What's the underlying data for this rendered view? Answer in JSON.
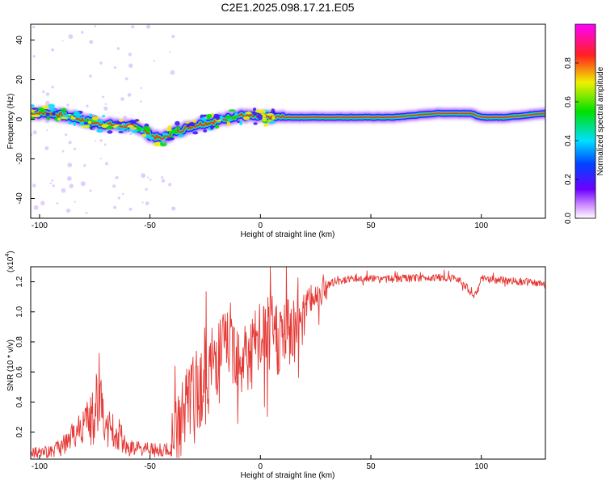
{
  "title": "C2E1.2025.098.17.21.E05",
  "colors": {
    "snr_line": "#e53935",
    "axis": "#000000",
    "background": "#ffffff"
  },
  "chart_data": [
    {
      "type": "heatmap",
      "xlabel": "Height of straight line (km)",
      "ylabel": "Frequency (Hz)",
      "xlim": [
        -104,
        129
      ],
      "ylim": [
        -50,
        48
      ],
      "xticks": [
        -100,
        -50,
        0,
        50,
        100
      ],
      "yticks": [
        40,
        20,
        0,
        -20,
        -40
      ],
      "xtick_labels": [
        "-100",
        "-50",
        "0",
        "50",
        "100"
      ],
      "ytick_labels": [
        "40",
        "20",
        "0",
        "-20",
        "-40"
      ],
      "grid": false,
      "colorbar": {
        "label": "Normalized spectral amplitude",
        "range": [
          0,
          1
        ],
        "ticks": [
          0.0,
          0.2,
          0.4,
          0.6,
          0.8
        ],
        "tick_labels": [
          "0.0",
          "0.2",
          "0.4",
          "0.6",
          "0.8"
        ],
        "colormap": "rainbow (white-violet-blue-cyan-green-yellow-red-magenta)"
      },
      "ridge_frequency_hz": [
        {
          "x": -104,
          "y": 3
        },
        {
          "x": -95,
          "y": 3
        },
        {
          "x": -85,
          "y": 1
        },
        {
          "x": -75,
          "y": -2
        },
        {
          "x": -65,
          "y": -3
        },
        {
          "x": -55,
          "y": -4
        },
        {
          "x": -50,
          "y": -8
        },
        {
          "x": -45,
          "y": -10
        },
        {
          "x": -40,
          "y": -7
        },
        {
          "x": -35,
          "y": -5
        },
        {
          "x": -30,
          "y": -3
        },
        {
          "x": -20,
          "y": -1
        },
        {
          "x": -10,
          "y": 2
        },
        {
          "x": 0,
          "y": 1
        },
        {
          "x": 10,
          "y": 1
        },
        {
          "x": 30,
          "y": 1
        },
        {
          "x": 60,
          "y": 1
        },
        {
          "x": 80,
          "y": 3
        },
        {
          "x": 95,
          "y": 3
        },
        {
          "x": 100,
          "y": 1
        },
        {
          "x": 110,
          "y": 1
        },
        {
          "x": 120,
          "y": 2
        },
        {
          "x": 129,
          "y": 3
        }
      ]
    },
    {
      "type": "line",
      "xlabel": "Height of straight line (km)",
      "ylabel": "SNR (10 * v/v)",
      "y_scale_label": "(x10",
      "y_scale_exp": "4",
      "y_scale_close": ")",
      "xlim": [
        -104,
        129
      ],
      "ylim": [
        0.02,
        1.3
      ],
      "xticks": [
        -100,
        -50,
        0,
        50,
        100
      ],
      "yticks": [
        0.2,
        0.4,
        0.6,
        0.8,
        1.0,
        1.2
      ],
      "xtick_labels": [
        "-100",
        "-50",
        "0",
        "50",
        "100"
      ],
      "ytick_labels": [
        "0.2",
        "0.4",
        "0.6",
        "0.8",
        "1.0",
        "1.2"
      ],
      "grid": false,
      "series": [
        {
          "points": [
            {
              "x": -104,
              "y": 0.06
            },
            {
              "x": -95,
              "y": 0.07
            },
            {
              "x": -88,
              "y": 0.12
            },
            {
              "x": -80,
              "y": 0.25
            },
            {
              "x": -75,
              "y": 0.3
            },
            {
              "x": -73,
              "y": 0.5
            },
            {
              "x": -70,
              "y": 0.22
            },
            {
              "x": -65,
              "y": 0.2
            },
            {
              "x": -60,
              "y": 0.1
            },
            {
              "x": -50,
              "y": 0.08
            },
            {
              "x": -40,
              "y": 0.08
            },
            {
              "x": -35,
              "y": 0.35
            },
            {
              "x": -30,
              "y": 0.45
            },
            {
              "x": -25,
              "y": 0.55
            },
            {
              "x": -20,
              "y": 0.7
            },
            {
              "x": -15,
              "y": 0.8
            },
            {
              "x": -10,
              "y": 0.75
            },
            {
              "x": -5,
              "y": 0.7
            },
            {
              "x": 0,
              "y": 0.8
            },
            {
              "x": 5,
              "y": 0.85
            },
            {
              "x": 10,
              "y": 0.82
            },
            {
              "x": 15,
              "y": 0.9
            },
            {
              "x": 20,
              "y": 1.05
            },
            {
              "x": 25,
              "y": 1.1
            },
            {
              "x": 30,
              "y": 1.18
            },
            {
              "x": 40,
              "y": 1.22
            },
            {
              "x": 60,
              "y": 1.22
            },
            {
              "x": 80,
              "y": 1.23
            },
            {
              "x": 90,
              "y": 1.22
            },
            {
              "x": 97,
              "y": 1.1
            },
            {
              "x": 100,
              "y": 1.22
            },
            {
              "x": 110,
              "y": 1.21
            },
            {
              "x": 120,
              "y": 1.2
            },
            {
              "x": 129,
              "y": 1.18
            }
          ]
        }
      ]
    }
  ]
}
